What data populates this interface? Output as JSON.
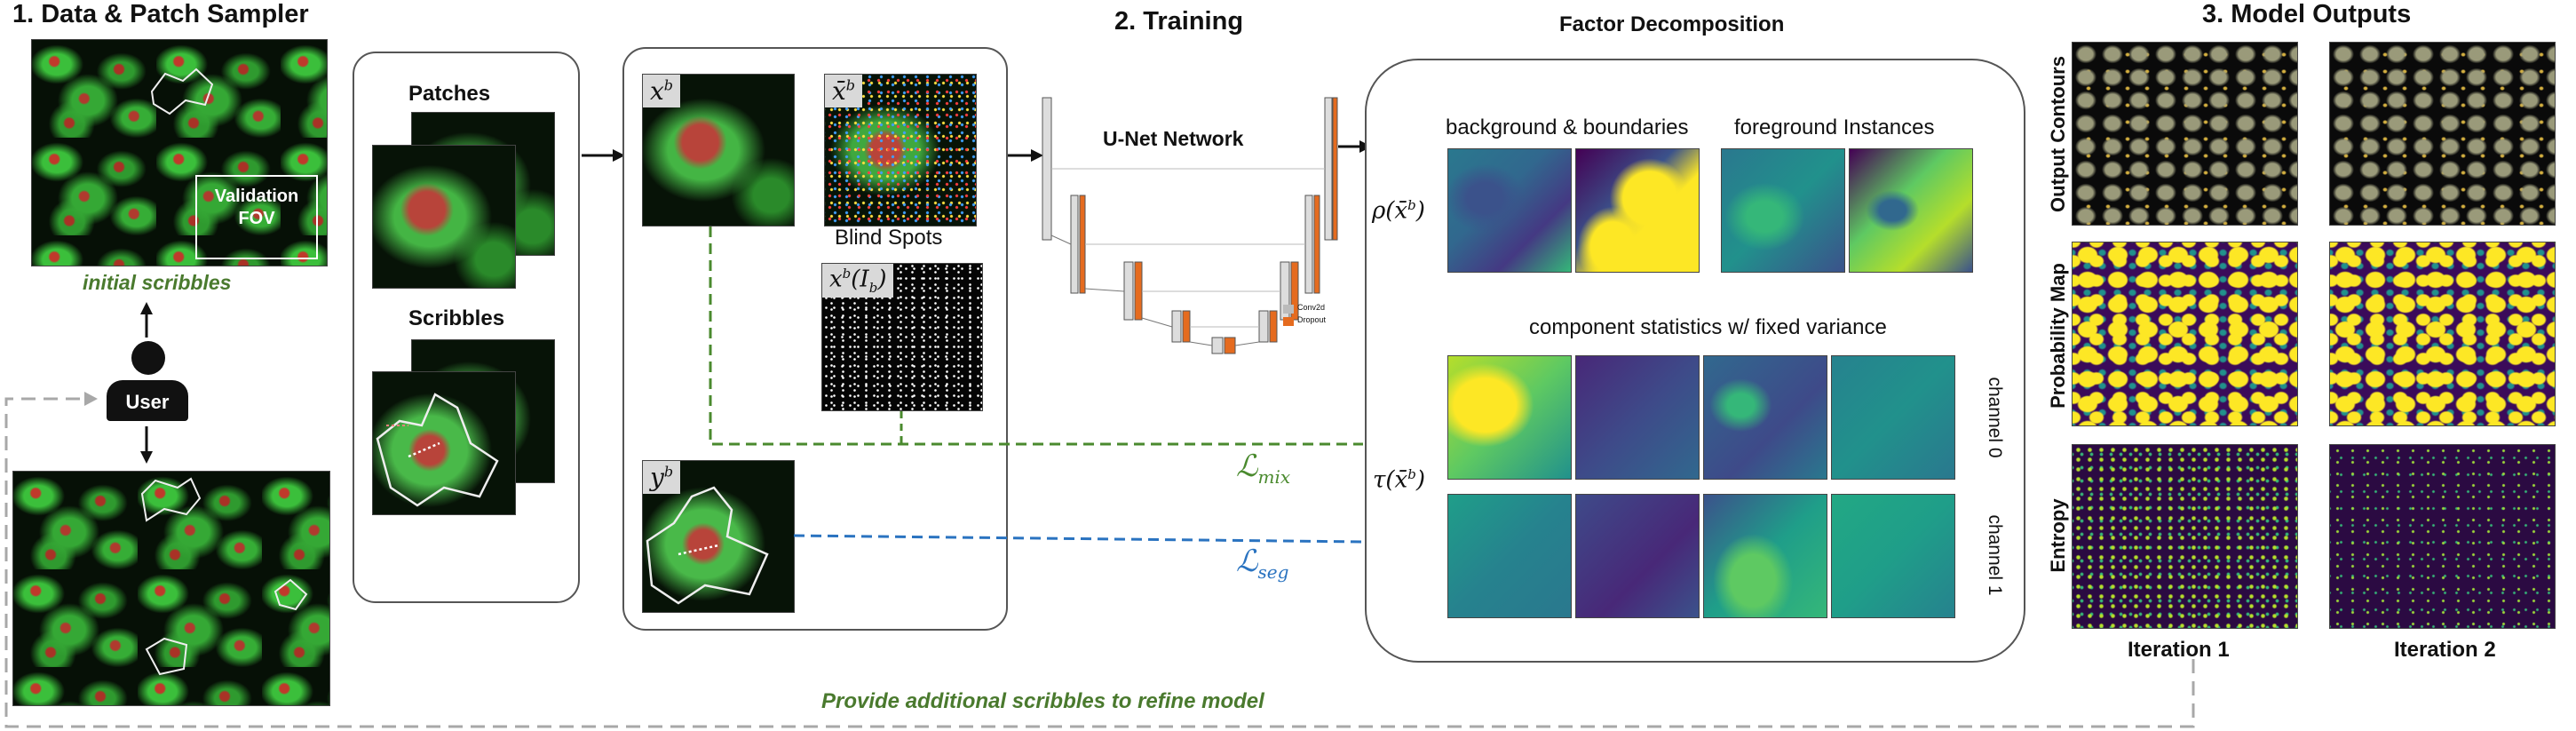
{
  "sections": {
    "data_sampler_title": "1. Data & Patch Sampler",
    "training_title": "2. Training",
    "factor_title": "Factor Decomposition",
    "outputs_title": "3. Model Outputs"
  },
  "sampler": {
    "validation_fov": "Validation\nFOV",
    "initial_scribbles": "initial scribbles",
    "user_label": "User",
    "patches_label": "Patches",
    "scribbles_label": "Scribbles"
  },
  "training": {
    "x_b": "x",
    "x_b_sup": "b",
    "xbar_b": "x̄",
    "xbar_b_sup": "b",
    "blind_spots_label": "Blind Spots",
    "xb_ib": "x",
    "xb_ib_sup": "b",
    "xb_ib_arg": "(I",
    "xb_ib_arg_sub": "b",
    "xb_ib_close": ")",
    "y_b": "y",
    "y_b_sup": "b",
    "unet_label": "U-Net Network",
    "legend_conv": "Conv2d",
    "legend_dropout": "Dropout",
    "loss_mix": "ℒ",
    "loss_mix_sub": "mix",
    "loss_seg": "ℒ",
    "loss_seg_sub": "seg"
  },
  "factor": {
    "rho_label": "ρ(x̄",
    "rho_sup": "b",
    "rho_close": ")",
    "tau_label": "τ(x̄",
    "tau_sup": "b",
    "tau_close": ")",
    "bg_boundaries": "background & boundaries",
    "fg_instances": "foreground Instances",
    "component_stats": "component statistics w/ fixed variance",
    "channel0": "channel 0",
    "channel1": "channel 1"
  },
  "outputs": {
    "row_contours": "Output Contours",
    "row_probability": "Probability Map",
    "row_entropy": "Entropy",
    "col_iter1": "Iteration 1",
    "col_iter2": "Iteration 2"
  },
  "feedback": "Provide additional scribbles to refine model",
  "colors": {
    "green_loss": "#4a8a2e",
    "blue_loss": "#2a73c0",
    "feedback_arrow": "#a8a8a8"
  }
}
